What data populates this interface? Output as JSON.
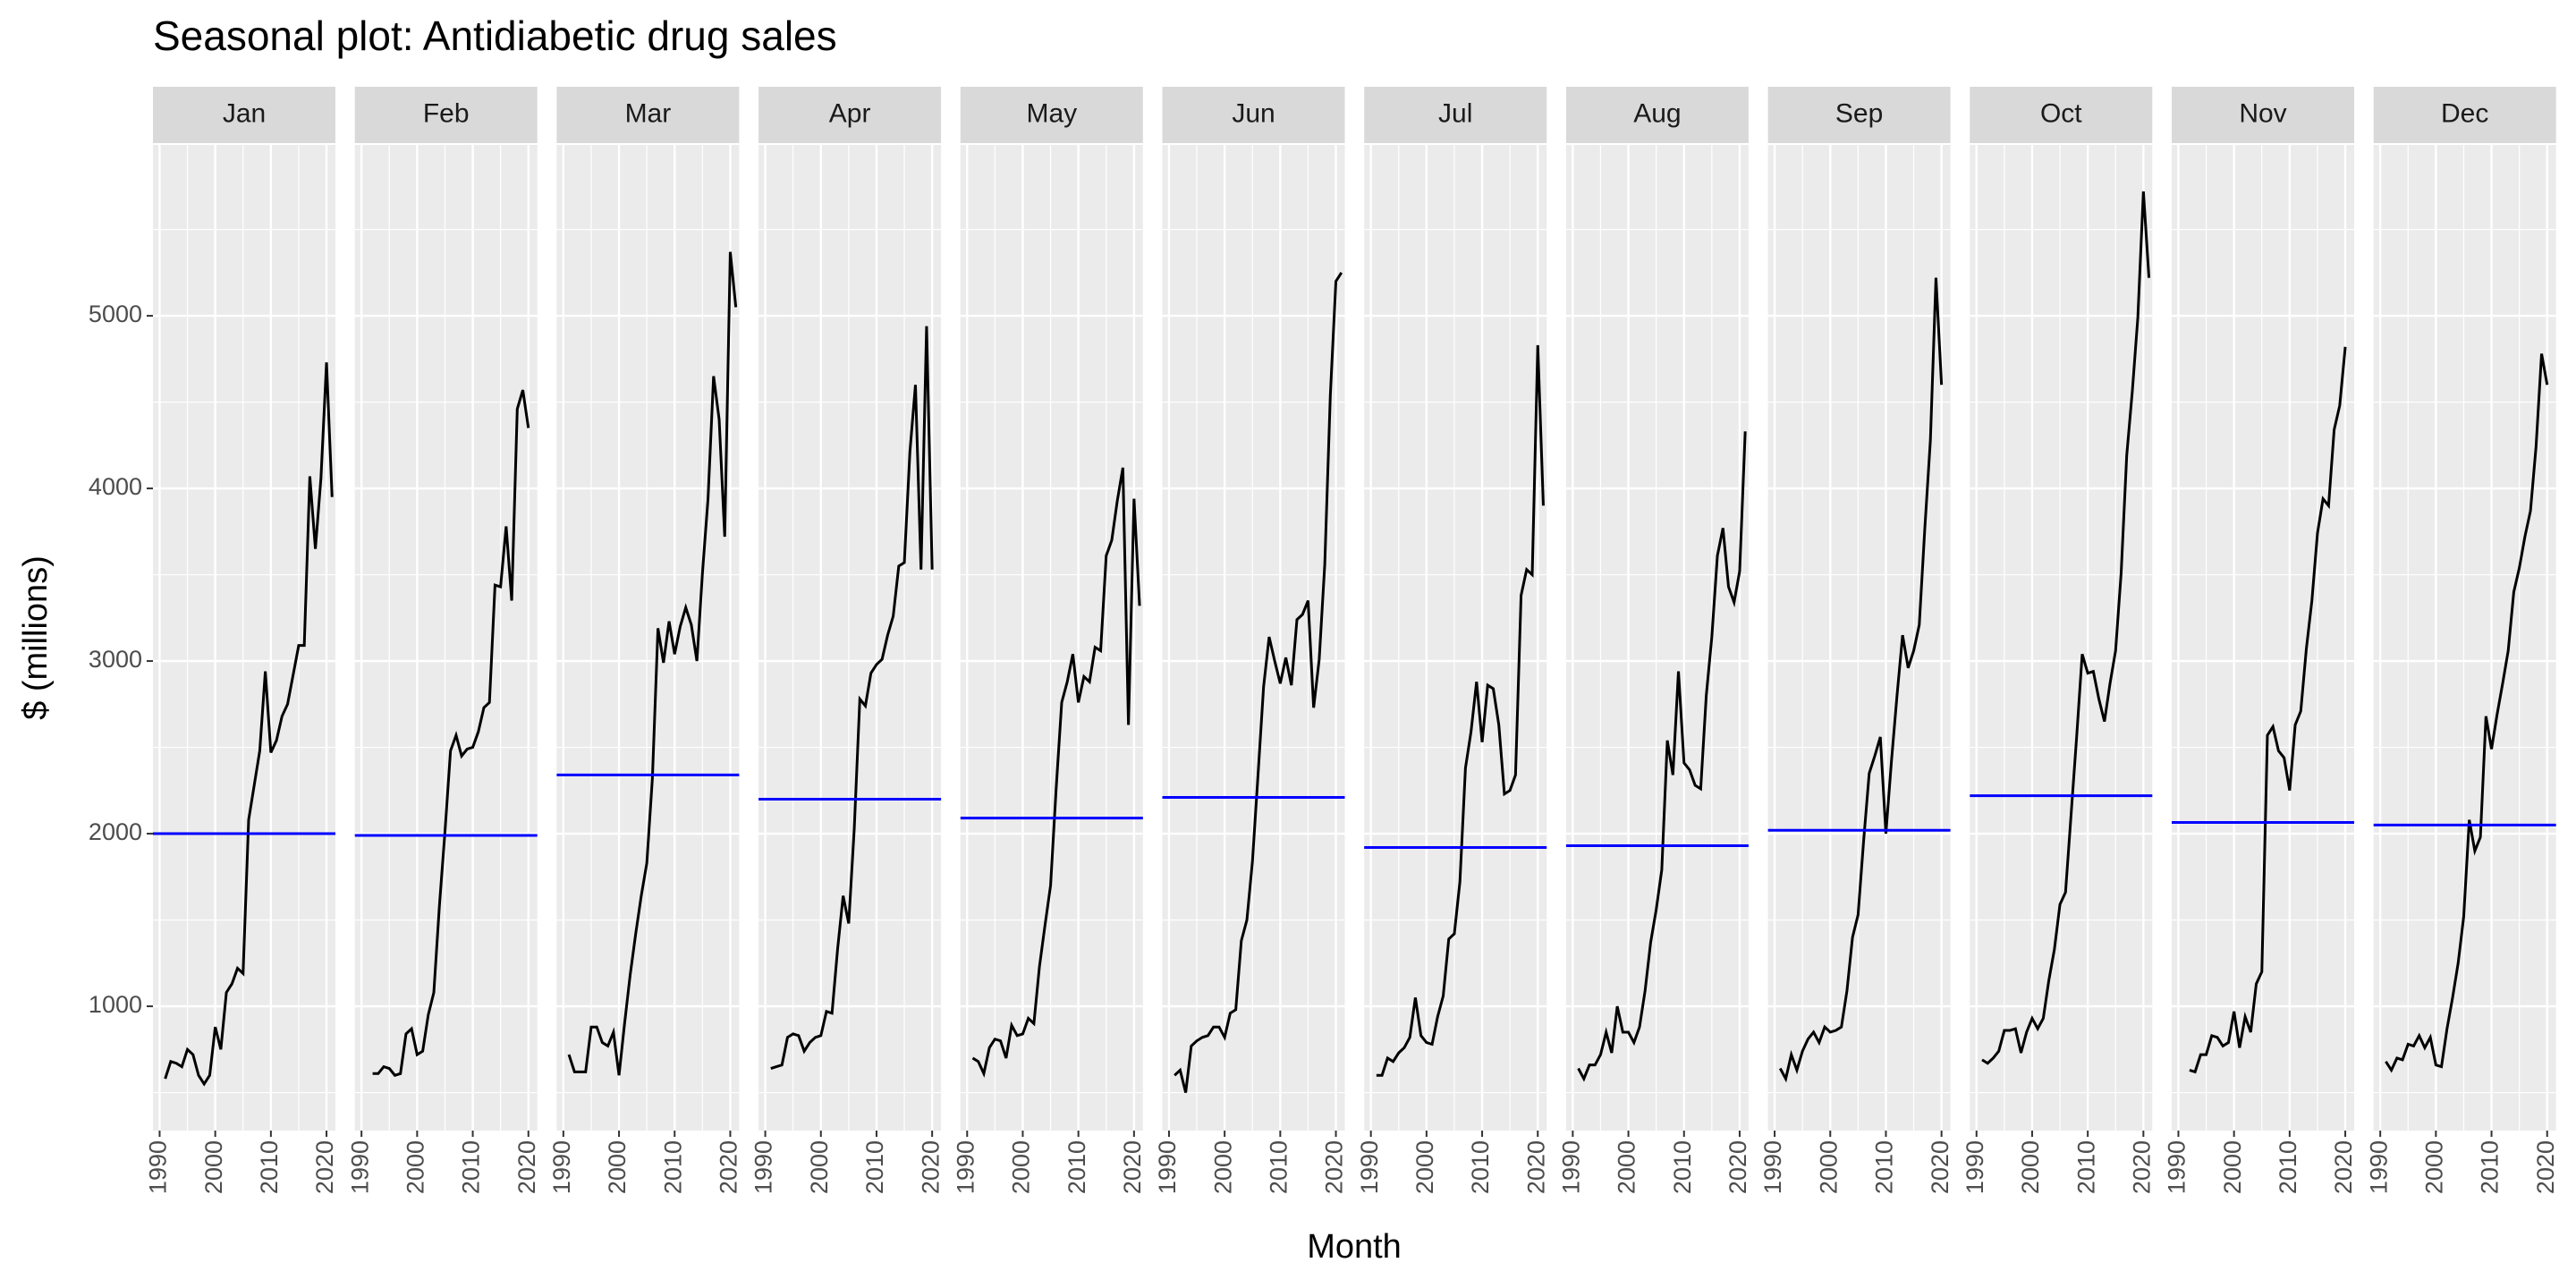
{
  "chart_data": {
    "type": "line",
    "title": "Seasonal plot: Antidiabetic drug sales",
    "x_label": "Month",
    "y_label": "$ (millions)",
    "xlim": [
      1988.8,
      2021.6
    ],
    "xticks": [
      1990,
      2000,
      2010,
      2020
    ],
    "xminor": [
      1995,
      2005,
      2015
    ],
    "ylim": [
      280,
      5990
    ],
    "yticks": [
      1000,
      2000,
      3000,
      4000,
      5000
    ],
    "yminor": [
      500,
      1500,
      2500,
      3500,
      4500,
      5500
    ],
    "grid": true,
    "mean_color": "#0000ff",
    "series": [
      {
        "name": "Jan",
        "color": "#000000",
        "mean": 2000,
        "x": [
          1991,
          1992,
          1993,
          1994,
          1995,
          1996,
          1997,
          1998,
          1999,
          2000,
          2001,
          2002,
          2003,
          2004,
          2005,
          2006,
          2007,
          2008,
          2009,
          2010,
          2011,
          2012,
          2013,
          2014,
          2015,
          2016,
          2017,
          2018,
          2019,
          2020,
          2021
        ],
        "values": [
          580,
          680,
          670,
          650,
          750,
          720,
          600,
          550,
          600,
          880,
          750,
          1080,
          1130,
          1220,
          1190,
          2080,
          2280,
          2480,
          2940,
          2470,
          2540,
          2680,
          2750,
          2920,
          3090,
          3090,
          4070,
          3650,
          4060,
          4730,
          3950
        ]
      },
      {
        "name": "Feb",
        "color": "#000000",
        "mean": 1990,
        "x": [
          1992,
          1993,
          1994,
          1995,
          1996,
          1997,
          1998,
          1999,
          2000,
          2001,
          2002,
          2003,
          2004,
          2005,
          2006,
          2007,
          2008,
          2009,
          2010,
          2011,
          2012,
          2013,
          2014,
          2015,
          2016,
          2017,
          2018,
          2019,
          2020
        ],
        "values": [
          610,
          610,
          650,
          640,
          600,
          610,
          840,
          870,
          720,
          740,
          950,
          1080,
          1580,
          2010,
          2480,
          2570,
          2450,
          2490,
          2500,
          2590,
          2730,
          2760,
          3440,
          3430,
          3780,
          3350,
          4460,
          4570,
          4350
        ]
      },
      {
        "name": "Mar",
        "color": "#000000",
        "mean": 2340,
        "x": [
          1991,
          1992,
          1993,
          1994,
          1995,
          1996,
          1997,
          1998,
          1999,
          2000,
          2001,
          2002,
          2003,
          2004,
          2005,
          2006,
          2007,
          2008,
          2009,
          2010,
          2011,
          2012,
          2013,
          2014,
          2015,
          2016,
          2017,
          2018,
          2019,
          2020,
          2021
        ],
        "values": [
          720,
          620,
          620,
          620,
          880,
          880,
          790,
          770,
          850,
          600,
          900,
          1180,
          1420,
          1640,
          1830,
          2320,
          3190,
          2990,
          3230,
          3040,
          3200,
          3310,
          3210,
          3000,
          3510,
          3940,
          4650,
          4400,
          3720,
          5370,
          5050
        ]
      },
      {
        "name": "Apr",
        "color": "#000000",
        "mean": 2200,
        "x": [
          1991,
          1992,
          1993,
          1994,
          1995,
          1996,
          1997,
          1998,
          1999,
          2000,
          2001,
          2002,
          2003,
          2004,
          2005,
          2006,
          2007,
          2008,
          2009,
          2010,
          2011,
          2012,
          2013,
          2014,
          2015,
          2016,
          2017,
          2018,
          2019,
          2020
        ],
        "values": [
          640,
          650,
          660,
          820,
          840,
          830,
          740,
          790,
          820,
          830,
          970,
          960,
          1330,
          1640,
          1480,
          2030,
          2780,
          2740,
          2930,
          2980,
          3010,
          3150,
          3260,
          3550,
          3570,
          4210,
          4600,
          3530,
          4940,
          3530
        ]
      },
      {
        "name": "May",
        "color": "#000000",
        "mean": 2090,
        "x": [
          1991,
          1992,
          1993,
          1994,
          1995,
          1996,
          1997,
          1998,
          1999,
          2000,
          2001,
          2002,
          2003,
          2004,
          2005,
          2006,
          2007,
          2008,
          2009,
          2010,
          2011,
          2012,
          2013,
          2014,
          2015,
          2016,
          2017,
          2018,
          2019,
          2020,
          2021
        ],
        "values": [
          700,
          680,
          610,
          760,
          810,
          800,
          700,
          890,
          830,
          840,
          930,
          900,
          1230,
          1470,
          1700,
          2260,
          2760,
          2880,
          3040,
          2760,
          2910,
          2880,
          3080,
          3060,
          3610,
          3700,
          3930,
          4120,
          2630,
          3940,
          3320
        ]
      },
      {
        "name": "Jun",
        "color": "#000000",
        "mean": 2210,
        "x": [
          1991,
          1992,
          1993,
          1994,
          1995,
          1996,
          1997,
          1998,
          1999,
          2000,
          2001,
          2002,
          2003,
          2004,
          2005,
          2006,
          2007,
          2008,
          2009,
          2010,
          2011,
          2012,
          2013,
          2014,
          2015,
          2016,
          2017,
          2018,
          2019,
          2020,
          2021
        ],
        "values": [
          600,
          630,
          500,
          770,
          800,
          820,
          830,
          880,
          880,
          820,
          960,
          980,
          1380,
          1500,
          1840,
          2340,
          2850,
          3140,
          3000,
          2870,
          3020,
          2860,
          3240,
          3270,
          3350,
          2730,
          3010,
          3560,
          4540,
          5200,
          5250
        ]
      },
      {
        "name": "Jul",
        "color": "#000000",
        "mean": 1920,
        "x": [
          1991,
          1992,
          1993,
          1994,
          1995,
          1996,
          1997,
          1998,
          1999,
          2000,
          2001,
          2002,
          2003,
          2004,
          2005,
          2006,
          2007,
          2008,
          2009,
          2010,
          2011,
          2012,
          2013,
          2014,
          2015,
          2016,
          2017,
          2018,
          2019,
          2020,
          2021
        ],
        "values": [
          600,
          600,
          700,
          680,
          730,
          760,
          820,
          1050,
          830,
          790,
          780,
          940,
          1060,
          1390,
          1420,
          1720,
          2380,
          2590,
          2880,
          2530,
          2860,
          2840,
          2630,
          2230,
          2250,
          2340,
          3380,
          3530,
          3500,
          4830,
          3900
        ]
      },
      {
        "name": "Aug",
        "color": "#000000",
        "mean": 1930,
        "x": [
          1991,
          1992,
          1993,
          1994,
          1995,
          1996,
          1997,
          1998,
          1999,
          2000,
          2001,
          2002,
          2003,
          2004,
          2005,
          2006,
          2007,
          2008,
          2009,
          2010,
          2011,
          2012,
          2013,
          2014,
          2015,
          2016,
          2017,
          2018,
          2019,
          2020,
          2021
        ],
        "values": [
          640,
          580,
          660,
          660,
          720,
          850,
          730,
          1000,
          850,
          850,
          790,
          880,
          1090,
          1370,
          1560,
          1790,
          2540,
          2340,
          2940,
          2410,
          2370,
          2280,
          2260,
          2800,
          3140,
          3610,
          3770,
          3430,
          3340,
          3520,
          4330
        ]
      },
      {
        "name": "Sep",
        "color": "#000000",
        "mean": 2020,
        "x": [
          1991,
          1992,
          1993,
          1994,
          1995,
          1996,
          1997,
          1998,
          1999,
          2000,
          2001,
          2002,
          2003,
          2004,
          2005,
          2006,
          2007,
          2008,
          2009,
          2010,
          2011,
          2012,
          2013,
          2014,
          2015,
          2016,
          2017,
          2018,
          2019,
          2020
        ],
        "values": [
          640,
          580,
          720,
          630,
          740,
          810,
          850,
          790,
          880,
          850,
          860,
          880,
          1090,
          1400,
          1530,
          1960,
          2350,
          2450,
          2560,
          2000,
          2420,
          2800,
          3150,
          2960,
          3060,
          3210,
          3770,
          4280,
          5220,
          4600
        ]
      },
      {
        "name": "Oct",
        "color": "#000000",
        "mean": 2220,
        "x": [
          1991,
          1992,
          1993,
          1994,
          1995,
          1996,
          1997,
          1998,
          1999,
          2000,
          2001,
          2002,
          2003,
          2004,
          2005,
          2006,
          2007,
          2008,
          2009,
          2010,
          2011,
          2012,
          2013,
          2014,
          2015,
          2016,
          2017,
          2018,
          2019,
          2020,
          2021
        ],
        "values": [
          690,
          670,
          700,
          740,
          860,
          860,
          870,
          730,
          850,
          930,
          870,
          930,
          1150,
          1330,
          1590,
          1660,
          2110,
          2560,
          3040,
          2930,
          2940,
          2780,
          2650,
          2870,
          3060,
          3510,
          4190,
          4560,
          4990,
          5720,
          5220
        ]
      },
      {
        "name": "Nov",
        "color": "#000000",
        "mean": 2065,
        "x": [
          1992,
          1993,
          1994,
          1995,
          1996,
          1997,
          1998,
          1999,
          2000,
          2001,
          2002,
          2003,
          2004,
          2005,
          2006,
          2007,
          2008,
          2009,
          2010,
          2011,
          2012,
          2013,
          2014,
          2015,
          2016,
          2017,
          2018,
          2019,
          2020
        ],
        "values": [
          630,
          620,
          720,
          720,
          830,
          820,
          770,
          790,
          970,
          760,
          940,
          850,
          1130,
          1200,
          2570,
          2620,
          2480,
          2440,
          2250,
          2630,
          2710,
          3070,
          3350,
          3740,
          3940,
          3900,
          4340,
          4480,
          4820
        ]
      },
      {
        "name": "Dec",
        "color": "#000000",
        "mean": 2050,
        "x": [
          1991,
          1992,
          1993,
          1994,
          1995,
          1996,
          1997,
          1998,
          1999,
          2000,
          2001,
          2002,
          2003,
          2004,
          2005,
          2006,
          2007,
          2008,
          2009,
          2010,
          2011,
          2012,
          2013,
          2014,
          2015,
          2016,
          2017,
          2018,
          2019,
          2020
        ],
        "values": [
          680,
          630,
          700,
          690,
          780,
          770,
          830,
          760,
          820,
          660,
          650,
          870,
          1050,
          1250,
          1520,
          2080,
          1900,
          1980,
          2680,
          2490,
          2690,
          2870,
          3060,
          3400,
          3540,
          3720,
          3870,
          4240,
          4780,
          4600
        ]
      }
    ]
  }
}
